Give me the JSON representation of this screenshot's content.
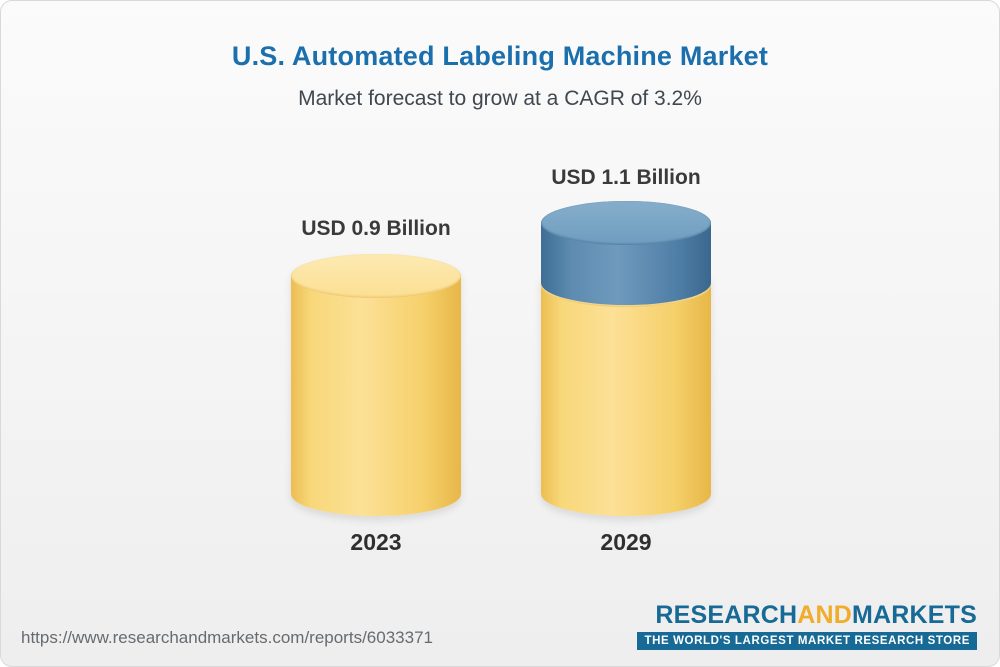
{
  "header": {
    "title": "U.S. Automated Labeling Machine Market",
    "subtitle": "Market forecast to grow at a CAGR of 3.2%"
  },
  "chart_data": {
    "type": "bar",
    "variant": "3d-cylinder",
    "title": "U.S. Automated Labeling Machine Market",
    "subtitle": "Market forecast to grow at a CAGR of 3.2%",
    "cagr_percent": 3.2,
    "unit": "USD Billion",
    "categories": [
      "2023",
      "2029"
    ],
    "values": [
      0.9,
      1.1
    ],
    "value_labels": [
      "USD 0.9 Billion",
      "USD 1.1 Billion"
    ],
    "series_note": "2029 cylinder shows base value in gold with incremental growth segment in blue on top",
    "colors": {
      "base_gold": "#f6d06b",
      "growth_blue": "#4f7ea6",
      "title_blue": "#1b6fad"
    },
    "legend": "none",
    "grid": false
  },
  "footer": {
    "url": "https://www.researchandmarkets.com/reports/6033371",
    "logo": {
      "part1": "RESEARCH",
      "part2": "AND",
      "part3": "MARKETS",
      "tagline": "THE WORLD'S LARGEST MARKET RESEARCH STORE"
    }
  }
}
